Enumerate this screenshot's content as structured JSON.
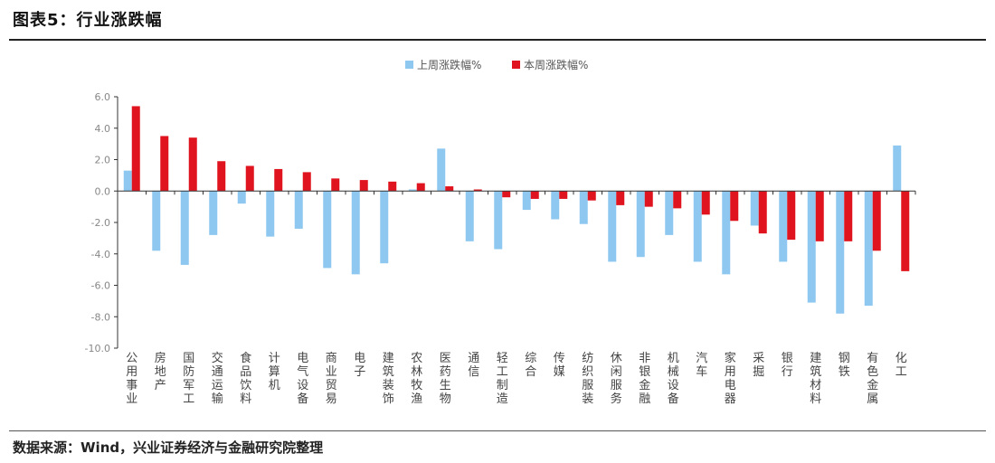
{
  "header": {
    "title": "图表5：行业涨跌幅"
  },
  "footer": {
    "source": "数据来源：Wind，兴业证券经济与金融研究院整理"
  },
  "colors": {
    "last_week": "#8ec8f0",
    "this_week": "#e0141e",
    "axis_text": "#888888",
    "axis_line": "#333333"
  },
  "chart_data": {
    "type": "bar",
    "title": "",
    "xlabel": "",
    "ylabel": "",
    "ylim": [
      -10,
      6
    ],
    "yticks": [
      "6.0",
      "4.0",
      "2.0",
      "0.0",
      "-2.0",
      "-4.0",
      "-6.0",
      "-8.0",
      "-10.0"
    ],
    "legend_position": "top-center",
    "grid": false,
    "categories": [
      "公用事业",
      "房地产",
      "国防军工",
      "交通运输",
      "食品饮料",
      "计算机",
      "电气设备",
      "商业贸易",
      "电子",
      "建筑装饰",
      "农林牧渔",
      "医药生物",
      "通信",
      "轻工制造",
      "综合",
      "传媒",
      "纺织服装",
      "休闲服务",
      "非银金融",
      "机械设备",
      "汽车",
      "家用电器",
      "采掘",
      "银行",
      "建筑材料",
      "钢铁",
      "有色金属",
      "化工"
    ],
    "series": [
      {
        "name": "上周涨跌幅%",
        "values": [
          1.3,
          -3.8,
          -4.7,
          -2.8,
          -0.8,
          -2.9,
          -2.4,
          -4.9,
          -5.3,
          -4.6,
          0.1,
          2.7,
          -3.2,
          -3.7,
          -1.2,
          -1.8,
          -2.1,
          -4.5,
          -4.2,
          -2.8,
          -4.5,
          -5.3,
          -2.2,
          -4.5,
          -7.1,
          -7.8,
          -7.3,
          2.9
        ]
      },
      {
        "name": "本周涨跌幅%",
        "values": [
          5.4,
          3.5,
          3.4,
          1.9,
          1.6,
          1.4,
          1.2,
          0.8,
          0.7,
          0.6,
          0.5,
          0.3,
          0.1,
          -0.4,
          -0.5,
          -0.5,
          -0.6,
          -0.9,
          -1.0,
          -1.1,
          -1.5,
          -1.9,
          -2.7,
          -3.1,
          -3.2,
          -3.2,
          -3.8,
          -5.1
        ]
      }
    ]
  }
}
